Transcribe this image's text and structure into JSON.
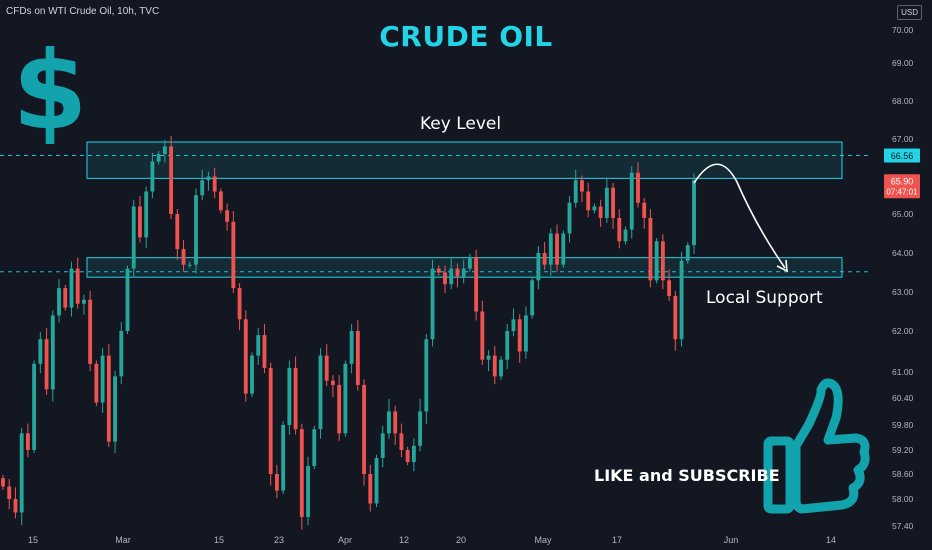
{
  "header": {
    "symbol": "CFDs on WTI Crude Oil, 10h, TVC",
    "title": "CRUDE OIL",
    "currency": "USD"
  },
  "annotations": {
    "key_level": "Key Level",
    "local_support": "Local Support",
    "cta": "LIKE and SUBSCRIBE"
  },
  "colors": {
    "background": "#131722",
    "up": "#26a69a",
    "down": "#ef5350",
    "accent": "#22d4e6",
    "icon": "#12a3ad"
  },
  "icons": [
    "dollar-sign-icon",
    "thumbs-up-icon",
    "curved-arrow-icon"
  ],
  "chart_data": {
    "type": "candlestick",
    "x_tick_labels": [
      "15",
      "Mar",
      "15",
      "23",
      "Apr",
      "12",
      "20",
      "May",
      "17",
      "Jun",
      "14"
    ],
    "y_tick_labels": [
      "70.00",
      "69.00",
      "68.00",
      "67.00",
      "65.00",
      "64.00",
      "63.00",
      "62.00",
      "61.00",
      "60.40",
      "59.80",
      "59.20",
      "58.60",
      "58.00",
      "57.40"
    ],
    "ylim": [
      57.4,
      70.3
    ],
    "price_labels": {
      "level_line": "66.56",
      "last_price": "65.90",
      "countdown": "07:47:01"
    },
    "horizontal_lines": [
      66.56,
      63.52
    ],
    "zones": [
      {
        "name": "Key Level",
        "from": 65.95,
        "to": 66.92
      },
      {
        "name": "Local Support",
        "from": 63.38,
        "to": 63.88
      }
    ],
    "closes": [
      58.3,
      58.0,
      57.7,
      59.6,
      59.2,
      61.2,
      61.8,
      60.6,
      62.4,
      63.1,
      62.6,
      63.6,
      62.7,
      62.8,
      61.2,
      60.3,
      61.4,
      59.4,
      60.9,
      62.0,
      63.6,
      65.2,
      64.4,
      65.6,
      66.4,
      66.6,
      66.8,
      65.0,
      64.1,
      63.7,
      63.7,
      65.5,
      65.9,
      66.0,
      65.6,
      65.1,
      64.8,
      63.1,
      62.3,
      60.5,
      61.4,
      61.9,
      61.1,
      58.6,
      58.2,
      59.8,
      61.1,
      59.7,
      57.6,
      58.8,
      59.7,
      61.4,
      60.8,
      60.7,
      59.6,
      61.2,
      62.0,
      60.7,
      58.6,
      57.9,
      59.0,
      59.6,
      60.1,
      59.6,
      59.2,
      58.9,
      59.3,
      60.1,
      61.8,
      63.6,
      63.5,
      63.2,
      63.6,
      63.4,
      63.6,
      63.9,
      62.5,
      61.3,
      61.4,
      60.9,
      61.3,
      62.0,
      62.3,
      61.5,
      62.4,
      63.3,
      64.0,
      63.7,
      64.5,
      63.7,
      64.5,
      65.3,
      65.9,
      65.6,
      65.1,
      65.2,
      64.9,
      65.7,
      64.9,
      64.3,
      64.6,
      66.1,
      65.3,
      64.9,
      63.3,
      64.3,
      63.3,
      62.9,
      61.8,
      63.8,
      64.2,
      65.9
    ]
  }
}
